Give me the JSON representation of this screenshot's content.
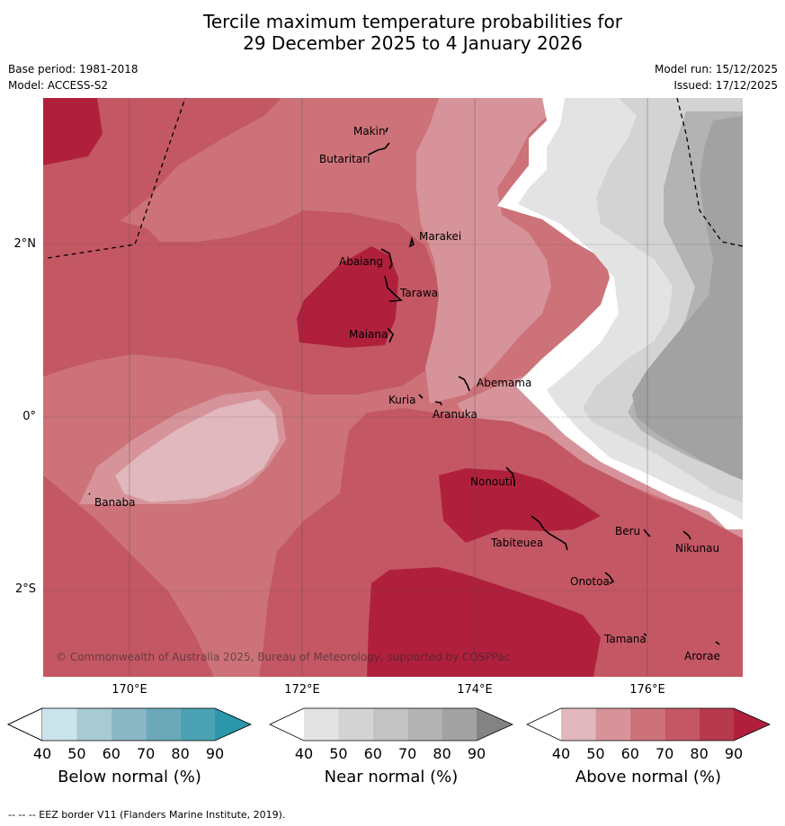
{
  "title": {
    "line1": "Tercile maximum temperature probabilities for",
    "line2": "29 December 2025 to 4 January 2026"
  },
  "meta": {
    "base_period": "Base period: 1981-2018",
    "model": "Model: ACCESS-S2",
    "model_run": "Model run: 15/12/2025",
    "issued": "Issued: 17/12/2025"
  },
  "map": {
    "latitude_labels": [
      "2°N",
      "0°",
      "2°S"
    ],
    "longitude_labels": [
      "170°E",
      "172°E",
      "174°E",
      "176°E"
    ],
    "places": [
      {
        "name": "Makin",
        "lon": 172.97,
        "lat": 3.37
      },
      {
        "name": "Butaritari",
        "lon": 172.78,
        "lat": 3.07
      },
      {
        "name": "Marakei",
        "lon": 173.27,
        "lat": 2.0
      },
      {
        "name": "Abaiang",
        "lon": 172.97,
        "lat": 1.84
      },
      {
        "name": "Tarawa",
        "lon": 173.03,
        "lat": 1.42
      },
      {
        "name": "Maiana",
        "lon": 173.01,
        "lat": 0.9
      },
      {
        "name": "Abemama",
        "lon": 173.87,
        "lat": 0.4
      },
      {
        "name": "Kuria",
        "lon": 173.42,
        "lat": 0.23
      },
      {
        "name": "Aranuka",
        "lon": 173.62,
        "lat": 0.17
      },
      {
        "name": "Banaba",
        "lon": 169.53,
        "lat": -0.86
      },
      {
        "name": "Nonouti",
        "lon": 174.43,
        "lat": -0.67
      },
      {
        "name": "Beru",
        "lon": 175.98,
        "lat": -1.33
      },
      {
        "name": "Nikunau",
        "lon": 176.45,
        "lat": -1.36
      },
      {
        "name": "Tabiteuea",
        "lon": 174.8,
        "lat": -1.33
      },
      {
        "name": "Onotoa",
        "lon": 175.58,
        "lat": -1.8
      },
      {
        "name": "Tamana",
        "lon": 175.98,
        "lat": -2.5
      },
      {
        "name": "Arorae",
        "lon": 176.82,
        "lat": -2.64
      }
    ],
    "copyright": "© Commonwealth of Australia 2025, Bureau of Meteorology, supported by COSPPac"
  },
  "colorbars": [
    {
      "label": "Below normal (%)",
      "ticks": [
        "40",
        "50",
        "60",
        "70",
        "80",
        "90"
      ],
      "colors": [
        "#ffffff",
        "#cbe3ea",
        "#a8cad3",
        "#8bb8c5",
        "#6ba9b8",
        "#4aa2b3",
        "#2a97aa"
      ]
    },
    {
      "label": "Near normal (%)",
      "ticks": [
        "40",
        "50",
        "60",
        "70",
        "80",
        "90"
      ],
      "colors": [
        "#ffffff",
        "#e3e3e3",
        "#d3d3d3",
        "#c3c3c3",
        "#b3b3b3",
        "#a2a2a2",
        "#838383"
      ]
    },
    {
      "label": "Above normal (%)",
      "ticks": [
        "40",
        "50",
        "60",
        "70",
        "80",
        "90"
      ],
      "colors": [
        "#ffffff",
        "#e0b8be",
        "#d6949a",
        "#cc7278",
        "#c45764",
        "#b7394c",
        "#b0203d"
      ]
    }
  ],
  "footnote": "--  --  -- EEZ border V11 (Flanders Marine Institute, 2019)."
}
